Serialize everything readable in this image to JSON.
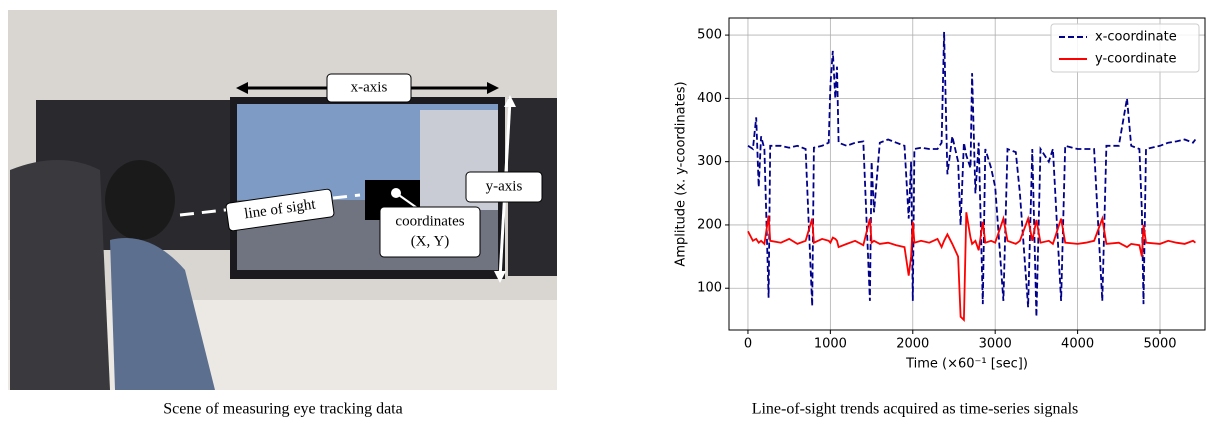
{
  "photo": {
    "labels": [
      "x-axis",
      "y-axis",
      "line of sight",
      "coordinates",
      "(X, Y)"
    ],
    "caption": "Scene of measuring eye tracking data"
  },
  "chart_data": {
    "type": "line",
    "caption": "Line-of-sight trends acquired as time-series signals",
    "xlabel": "Time (×60⁻¹ [sec])",
    "ylabel": "Amplitude (x. y-coordinates)",
    "x": [
      0,
      60,
      100,
      130,
      160,
      200,
      250,
      270,
      400,
      500,
      600,
      700,
      780,
      800,
      900,
      980,
      1000,
      1030,
      1060,
      1080,
      1100,
      1200,
      1300,
      1400,
      1480,
      1500,
      1530,
      1600,
      1700,
      1800,
      1900,
      1950,
      1980,
      2000,
      2020,
      2100,
      2200,
      2300,
      2350,
      2380,
      2420,
      2480,
      2550,
      2580,
      2620,
      2650,
      2700,
      2720,
      2760,
      2800,
      2850,
      2880,
      2950,
      3000,
      3100,
      3150,
      3250,
      3300,
      3400,
      3450,
      3500,
      3550,
      3650,
      3700,
      3800,
      3850,
      4000,
      4100,
      4200,
      4300,
      4350,
      4500,
      4600,
      4650,
      4750,
      4780,
      4800,
      4830,
      5000,
      5100,
      5200,
      5300,
      5400,
      5430
    ],
    "series": [
      {
        "name": "x-coordinate",
        "color": "#00008b",
        "linestyle": "dashed",
        "values": [
          325,
          320,
          370,
          260,
          340,
          320,
          85,
          325,
          325,
          322,
          325,
          320,
          72,
          322,
          325,
          330,
          420,
          475,
          400,
          450,
          330,
          325,
          330,
          332,
          80,
          300,
          220,
          330,
          335,
          330,
          325,
          210,
          300,
          80,
          320,
          322,
          320,
          320,
          330,
          505,
          280,
          340,
          300,
          200,
          330,
          310,
          290,
          440,
          250,
          330,
          75,
          320,
          290,
          260,
          80,
          320,
          315,
          250,
          70,
          320,
          55,
          320,
          300,
          320,
          80,
          325,
          320,
          320,
          320,
          80,
          325,
          325,
          400,
          325,
          320,
          220,
          75,
          320,
          325,
          330,
          332,
          335,
          330,
          335
        ]
      },
      {
        "name": "y-coordinate",
        "color": "#ff0000",
        "linestyle": "solid",
        "values": [
          190,
          175,
          178,
          172,
          175,
          170,
          215,
          175,
          172,
          178,
          170,
          175,
          210,
          172,
          178,
          175,
          172,
          180,
          178,
          175,
          165,
          170,
          175,
          168,
          210,
          172,
          175,
          170,
          172,
          168,
          165,
          120,
          150,
          205,
          172,
          175,
          172,
          178,
          165,
          175,
          185,
          170,
          150,
          55,
          50,
          220,
          180,
          170,
          175,
          160,
          205,
          172,
          175,
          172,
          210,
          175,
          170,
          175,
          210,
          175,
          208,
          172,
          175,
          170,
          210,
          172,
          170,
          172,
          175,
          210,
          170,
          172,
          165,
          170,
          168,
          150,
          200,
          172,
          170,
          175,
          172,
          170,
          175,
          172
        ]
      }
    ],
    "xlim": [
      -230,
      5546
    ],
    "ylim": [
      34,
      527
    ],
    "xticks": [
      0,
      1000,
      2000,
      3000,
      4000,
      5000
    ],
    "yticks": [
      100,
      200,
      300,
      400,
      500
    ],
    "grid": true,
    "legend": "upper right"
  }
}
